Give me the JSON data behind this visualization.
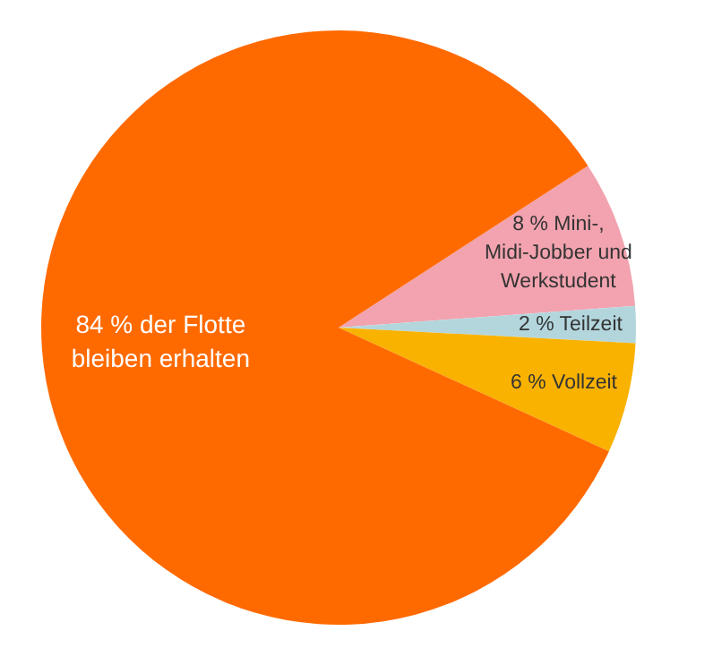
{
  "chart_data": {
    "type": "pie",
    "categories": [
      "Mini-, Midi-Jobber und Werkstudent",
      "Teilzeit",
      "Vollzeit",
      "der Flotte bleiben erhalten"
    ],
    "values": [
      8,
      2,
      6,
      84
    ],
    "value_labels": [
      "8 %",
      "2 %",
      "6 %",
      "84 %"
    ],
    "colors": [
      "#f2a3af",
      "#b3d6dd",
      "#f9b200",
      "#ff6a00"
    ]
  }
}
